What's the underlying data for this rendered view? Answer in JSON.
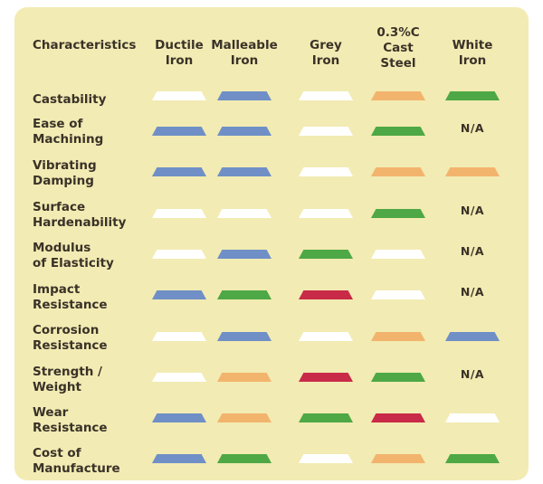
{
  "table": {
    "headers": [
      "Characteristics",
      "Ductile\nIron",
      "Malleable\nIron",
      "Grey\nIron",
      "0.3%C\nCast\nSteel",
      "White\nIron"
    ],
    "na_text": "N/A",
    "rows": [
      {
        "label": "Castability",
        "cells": [
          "white",
          "blue",
          "white",
          "orange",
          "green"
        ]
      },
      {
        "label": "Ease of\nMachining",
        "cells": [
          "blue",
          "blue",
          "white",
          "green",
          "N/A"
        ]
      },
      {
        "label": "Vibrating\nDamping",
        "cells": [
          "blue",
          "blue",
          "white",
          "orange",
          "orange"
        ]
      },
      {
        "label": "Surface\nHardenability",
        "cells": [
          "white",
          "white",
          "white",
          "green",
          "N/A"
        ]
      },
      {
        "label": "Modulus\nof Elasticity",
        "cells": [
          "white",
          "blue",
          "green",
          "white",
          "N/A"
        ]
      },
      {
        "label": "Impact\nResistance",
        "cells": [
          "blue",
          "green",
          "red",
          "white",
          "N/A"
        ]
      },
      {
        "label": "Corrosion\nResistance",
        "cells": [
          "white",
          "blue",
          "white",
          "orange",
          "blue"
        ]
      },
      {
        "label": "Strength /\nWeight",
        "cells": [
          "white",
          "orange",
          "red",
          "green",
          "N/A"
        ]
      },
      {
        "label": "Wear\nResistance",
        "cells": [
          "blue",
          "orange",
          "green",
          "red",
          "white"
        ]
      },
      {
        "label": "Cost of\nManufacture",
        "cells": [
          "blue",
          "green",
          "white",
          "orange",
          "green"
        ]
      }
    ]
  },
  "colors": {
    "panel_background": "#f2ebb3",
    "text": "#3a3228",
    "blue": "#6f8fc6",
    "white": "#ffffff",
    "orange": "#f2b46d",
    "green": "#4ea845",
    "red": "#c82a48"
  }
}
